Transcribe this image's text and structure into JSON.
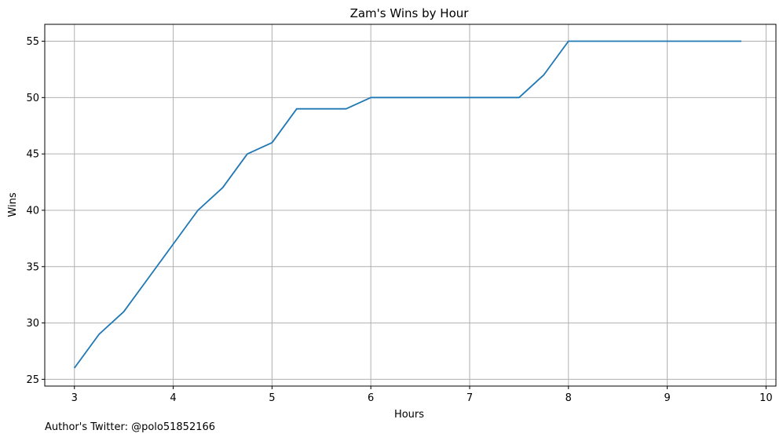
{
  "chart_data": {
    "type": "line",
    "title": "Zam's Wins by Hour",
    "xlabel": "Hours",
    "ylabel": "Wins",
    "xlim": [
      2.7,
      10.1
    ],
    "ylim": [
      24.4,
      56.5
    ],
    "xticks": [
      3,
      4,
      5,
      6,
      7,
      8,
      9,
      10
    ],
    "yticks": [
      25,
      30,
      35,
      40,
      45,
      50,
      55
    ],
    "grid": true,
    "series": [
      {
        "color": "#1f77b4",
        "x": [
          3,
          3.25,
          3.5,
          3.75,
          4,
          4.25,
          4.5,
          4.75,
          5,
          5.25,
          5.5,
          5.75,
          6,
          6.25,
          6.5,
          6.75,
          7,
          7.25,
          7.5,
          7.75,
          8,
          8.25,
          8.5,
          8.75,
          9,
          9.25,
          9.5,
          9.75
        ],
        "y": [
          26,
          29,
          31,
          34,
          37,
          40,
          42,
          45,
          46,
          49,
          49,
          49,
          50,
          50,
          50,
          50,
          50,
          50,
          50,
          52,
          55,
          55,
          55,
          55,
          55,
          55,
          55,
          55
        ]
      }
    ]
  },
  "footer": {
    "text": "Author's Twitter: @polo51852166"
  }
}
